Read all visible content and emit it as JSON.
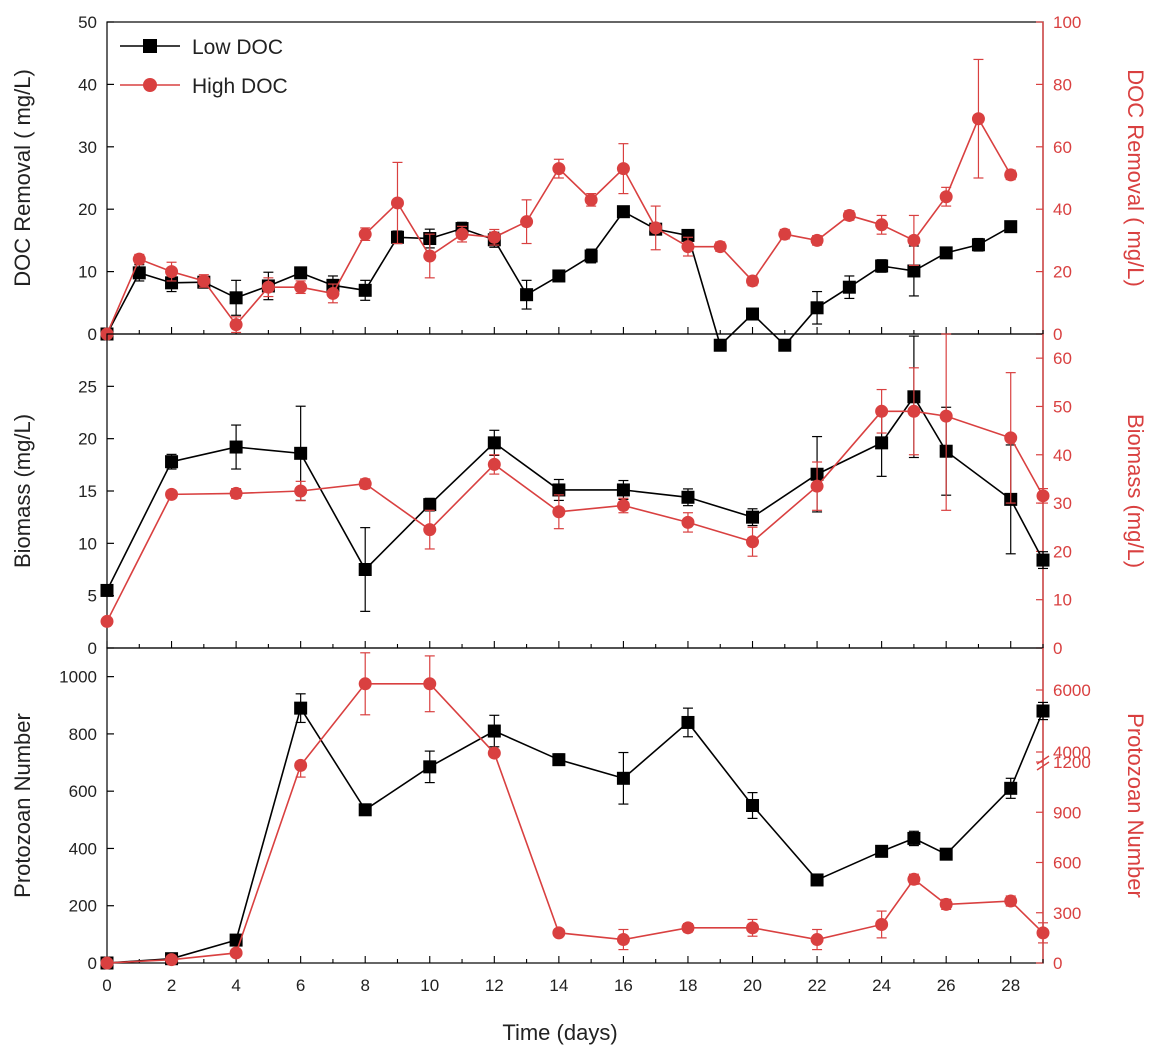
{
  "legend": [
    {
      "name": "Low DOC",
      "color": "#000000",
      "marker": "square"
    },
    {
      "name": "High DOC",
      "color": "#d94040",
      "marker": "circle"
    }
  ],
  "xlabel": "Time (days)",
  "chart_data": [
    {
      "type": "line",
      "panel": "top",
      "ylabel_left": "DOC Removal ( mg/L)",
      "ylabel_right": "DOC Removal ( mg/L)",
      "xlim": [
        0,
        29
      ],
      "x_ticks": [
        0,
        2,
        4,
        6,
        8,
        10,
        12,
        14,
        16,
        18,
        20,
        22,
        24,
        26,
        28
      ],
      "ylim_left": [
        0,
        50
      ],
      "yticks_left": [
        0,
        10,
        20,
        30,
        40,
        50
      ],
      "ylim_right": [
        0,
        100
      ],
      "yticks_right": [
        0,
        20,
        40,
        60,
        80,
        100
      ],
      "series": [
        {
          "name": "Low DOC",
          "axis": "left",
          "color": "#000000",
          "marker": "square",
          "x": [
            0,
            1,
            2,
            3,
            4,
            5,
            6,
            7,
            8,
            9,
            10,
            11,
            12,
            13,
            14,
            15,
            16,
            17,
            18,
            19,
            20,
            21,
            22,
            23,
            24,
            25,
            26,
            27,
            28
          ],
          "y": [
            0,
            9.8,
            8.2,
            8.3,
            5.8,
            7.7,
            9.8,
            7.8,
            7.0,
            15.5,
            15.3,
            16.9,
            15.1,
            6.3,
            9.3,
            12.5,
            19.6,
            16.8,
            15.8,
            -1.8,
            3.2,
            -1.8,
            4.2,
            7.5,
            10.9,
            10.1,
            13.0,
            14.3,
            17.2
          ],
          "err": [
            0,
            1.3,
            1.4,
            0.8,
            2.8,
            2.2,
            0.8,
            1.5,
            1.6,
            1.0,
            1.5,
            1.0,
            1.2,
            2.3,
            0.8,
            1.1,
            0.8,
            0.8,
            0.8,
            0,
            0,
            0,
            2.6,
            1.8,
            1.0,
            4.0,
            0.8,
            1.0,
            0.6
          ]
        },
        {
          "name": "High DOC",
          "axis": "right",
          "color": "#d94040",
          "marker": "circle",
          "x": [
            0,
            1,
            2,
            3,
            4,
            5,
            6,
            7,
            8,
            9,
            10,
            11,
            12,
            13,
            14,
            15,
            16,
            17,
            18,
            19,
            20,
            21,
            22,
            23,
            24,
            25,
            26,
            27,
            28
          ],
          "y": [
            0,
            24,
            20,
            17,
            3,
            15,
            15,
            13,
            32,
            42,
            25,
            32,
            31,
            36,
            53,
            43,
            53,
            34,
            28,
            28,
            17,
            32,
            30,
            38,
            35,
            30,
            44,
            69,
            51
          ],
          "err": [
            0,
            1.5,
            3,
            2,
            2.5,
            3,
            2,
            3,
            2,
            13,
            7,
            2.5,
            2.5,
            7,
            3,
            2,
            8,
            7,
            3,
            1.5,
            1.5,
            1.5,
            1.5,
            1.5,
            3,
            8,
            3,
            19,
            1.5
          ]
        }
      ]
    },
    {
      "type": "line",
      "panel": "middle",
      "ylabel_left": "Biomass (mg/L)",
      "ylabel_right": "Biomass (mg/L)",
      "xlim": [
        0,
        29
      ],
      "x_ticks": [
        0,
        2,
        4,
        6,
        8,
        10,
        12,
        14,
        16,
        18,
        20,
        22,
        24,
        26,
        28
      ],
      "ylim_left": [
        0,
        30
      ],
      "yticks_left": [
        0,
        5,
        10,
        15,
        20,
        25
      ],
      "ylim_right": [
        0,
        65
      ],
      "yticks_right": [
        0,
        10,
        20,
        30,
        40,
        50,
        60
      ],
      "series": [
        {
          "name": "Low DOC",
          "axis": "left",
          "color": "#000000",
          "marker": "square",
          "x": [
            0,
            2,
            4,
            6,
            8,
            10,
            12,
            14,
            16,
            18,
            20,
            22,
            24,
            25,
            26,
            28,
            29
          ],
          "y": [
            5.5,
            17.8,
            19.2,
            18.6,
            7.5,
            13.7,
            19.6,
            15.1,
            15.1,
            14.4,
            12.5,
            16.6,
            19.6,
            24.0,
            18.8,
            14.2,
            8.4
          ],
          "err": [
            0.3,
            0.7,
            2.1,
            4.5,
            4.0,
            0.6,
            1.2,
            1.0,
            0.9,
            0.8,
            0.8,
            3.6,
            3.2,
            5.8,
            4.2,
            5.2,
            0.8
          ]
        },
        {
          "name": "High DOC",
          "axis": "right",
          "color": "#d94040",
          "marker": "circle",
          "x": [
            0,
            2,
            4,
            6,
            8,
            10,
            12,
            14,
            16,
            18,
            20,
            22,
            24,
            25,
            26,
            28,
            29
          ],
          "y": [
            5.5,
            31.8,
            32.0,
            32.5,
            34.0,
            24.5,
            38.0,
            28.2,
            29.5,
            26.0,
            22.0,
            33.5,
            49.0,
            49.0,
            48.0,
            43.5,
            31.5
          ],
          "err": [
            0.5,
            0.8,
            1.0,
            2.0,
            1.0,
            4.0,
            2.0,
            3.5,
            1.5,
            2.0,
            3.0,
            5.0,
            4.5,
            9.0,
            19.5,
            13.5,
            1.5
          ]
        }
      ]
    },
    {
      "type": "line",
      "panel": "bottom",
      "ylabel_left": "Protozoan Number",
      "ylabel_right": "Protozoan Number",
      "xlim": [
        0,
        29
      ],
      "x_ticks": [
        0,
        2,
        4,
        6,
        8,
        10,
        12,
        14,
        16,
        18,
        20,
        22,
        24,
        26,
        28
      ],
      "ylim_left": [
        0,
        1100
      ],
      "yticks_left": [
        0,
        200,
        400,
        600,
        800,
        1000
      ],
      "yticks_right": [
        0,
        300,
        600,
        900,
        1200,
        4000,
        6000
      ],
      "right_axis_break": "between 1200 and 4000",
      "series": [
        {
          "name": "Low DOC",
          "axis": "left",
          "color": "#000000",
          "marker": "square",
          "x": [
            0,
            2,
            4,
            6,
            8,
            10,
            12,
            14,
            16,
            18,
            20,
            22,
            24,
            25,
            26,
            28,
            29
          ],
          "y": [
            0,
            15,
            80,
            890,
            535,
            685,
            810,
            710,
            645,
            840,
            550,
            290,
            390,
            435,
            380,
            610,
            880
          ],
          "err": [
            0,
            5,
            10,
            50,
            10,
            55,
            55,
            20,
            90,
            50,
            45,
            10,
            15,
            25,
            10,
            35,
            30
          ]
        },
        {
          "name": "High DOC",
          "axis": "right",
          "color": "#d94040",
          "marker": "circle",
          "x": [
            0,
            2,
            4,
            6,
            8,
            10,
            12,
            14,
            16,
            18,
            20,
            22,
            24,
            25,
            26,
            28,
            29
          ],
          "y": [
            0,
            20,
            60,
            1180,
            6200,
            6200,
            3700,
            180,
            140,
            210,
            210,
            140,
            230,
            500,
            350,
            370,
            180
          ],
          "err": [
            0,
            10,
            15,
            70,
            1000,
            900,
            150,
            20,
            60,
            25,
            50,
            60,
            80,
            30,
            30,
            30,
            60
          ]
        }
      ]
    }
  ]
}
